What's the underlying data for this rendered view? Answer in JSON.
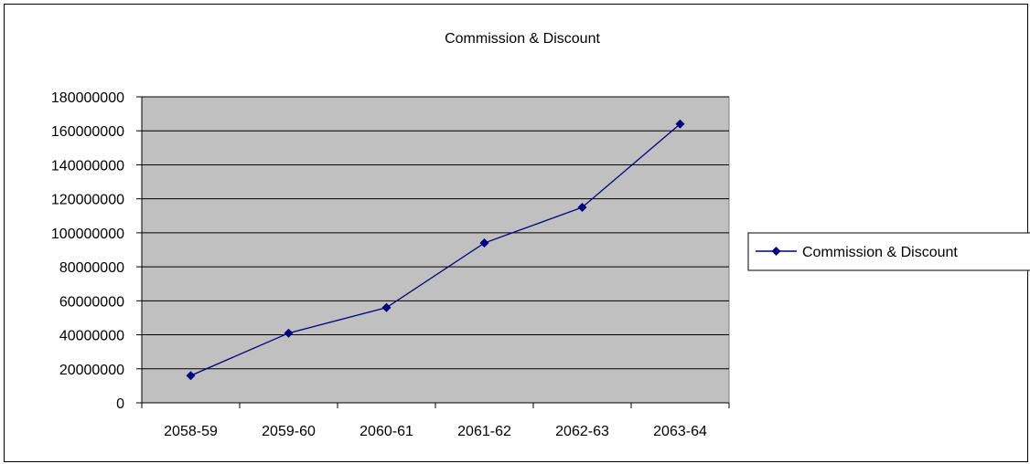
{
  "chart_data": {
    "type": "line",
    "title": "Commission & Discount",
    "categories": [
      "2058-59",
      "2059-60",
      "2060-61",
      "2061-62",
      "2062-63",
      "2063-64"
    ],
    "series": [
      {
        "name": "Commission & Discount",
        "values": [
          16000000,
          41000000,
          56000000,
          94000000,
          115000000,
          164000000
        ]
      }
    ],
    "ylim": [
      0,
      180000000
    ],
    "yticks": [
      "0",
      "20000000",
      "40000000",
      "60000000",
      "80000000",
      "100000000",
      "120000000",
      "140000000",
      "160000000",
      "180000000"
    ],
    "grid": true,
    "legend_position": "right",
    "colors": {
      "plot_background": "#c0c0c0",
      "series_line": "#000080",
      "gridline": "#000000"
    }
  }
}
